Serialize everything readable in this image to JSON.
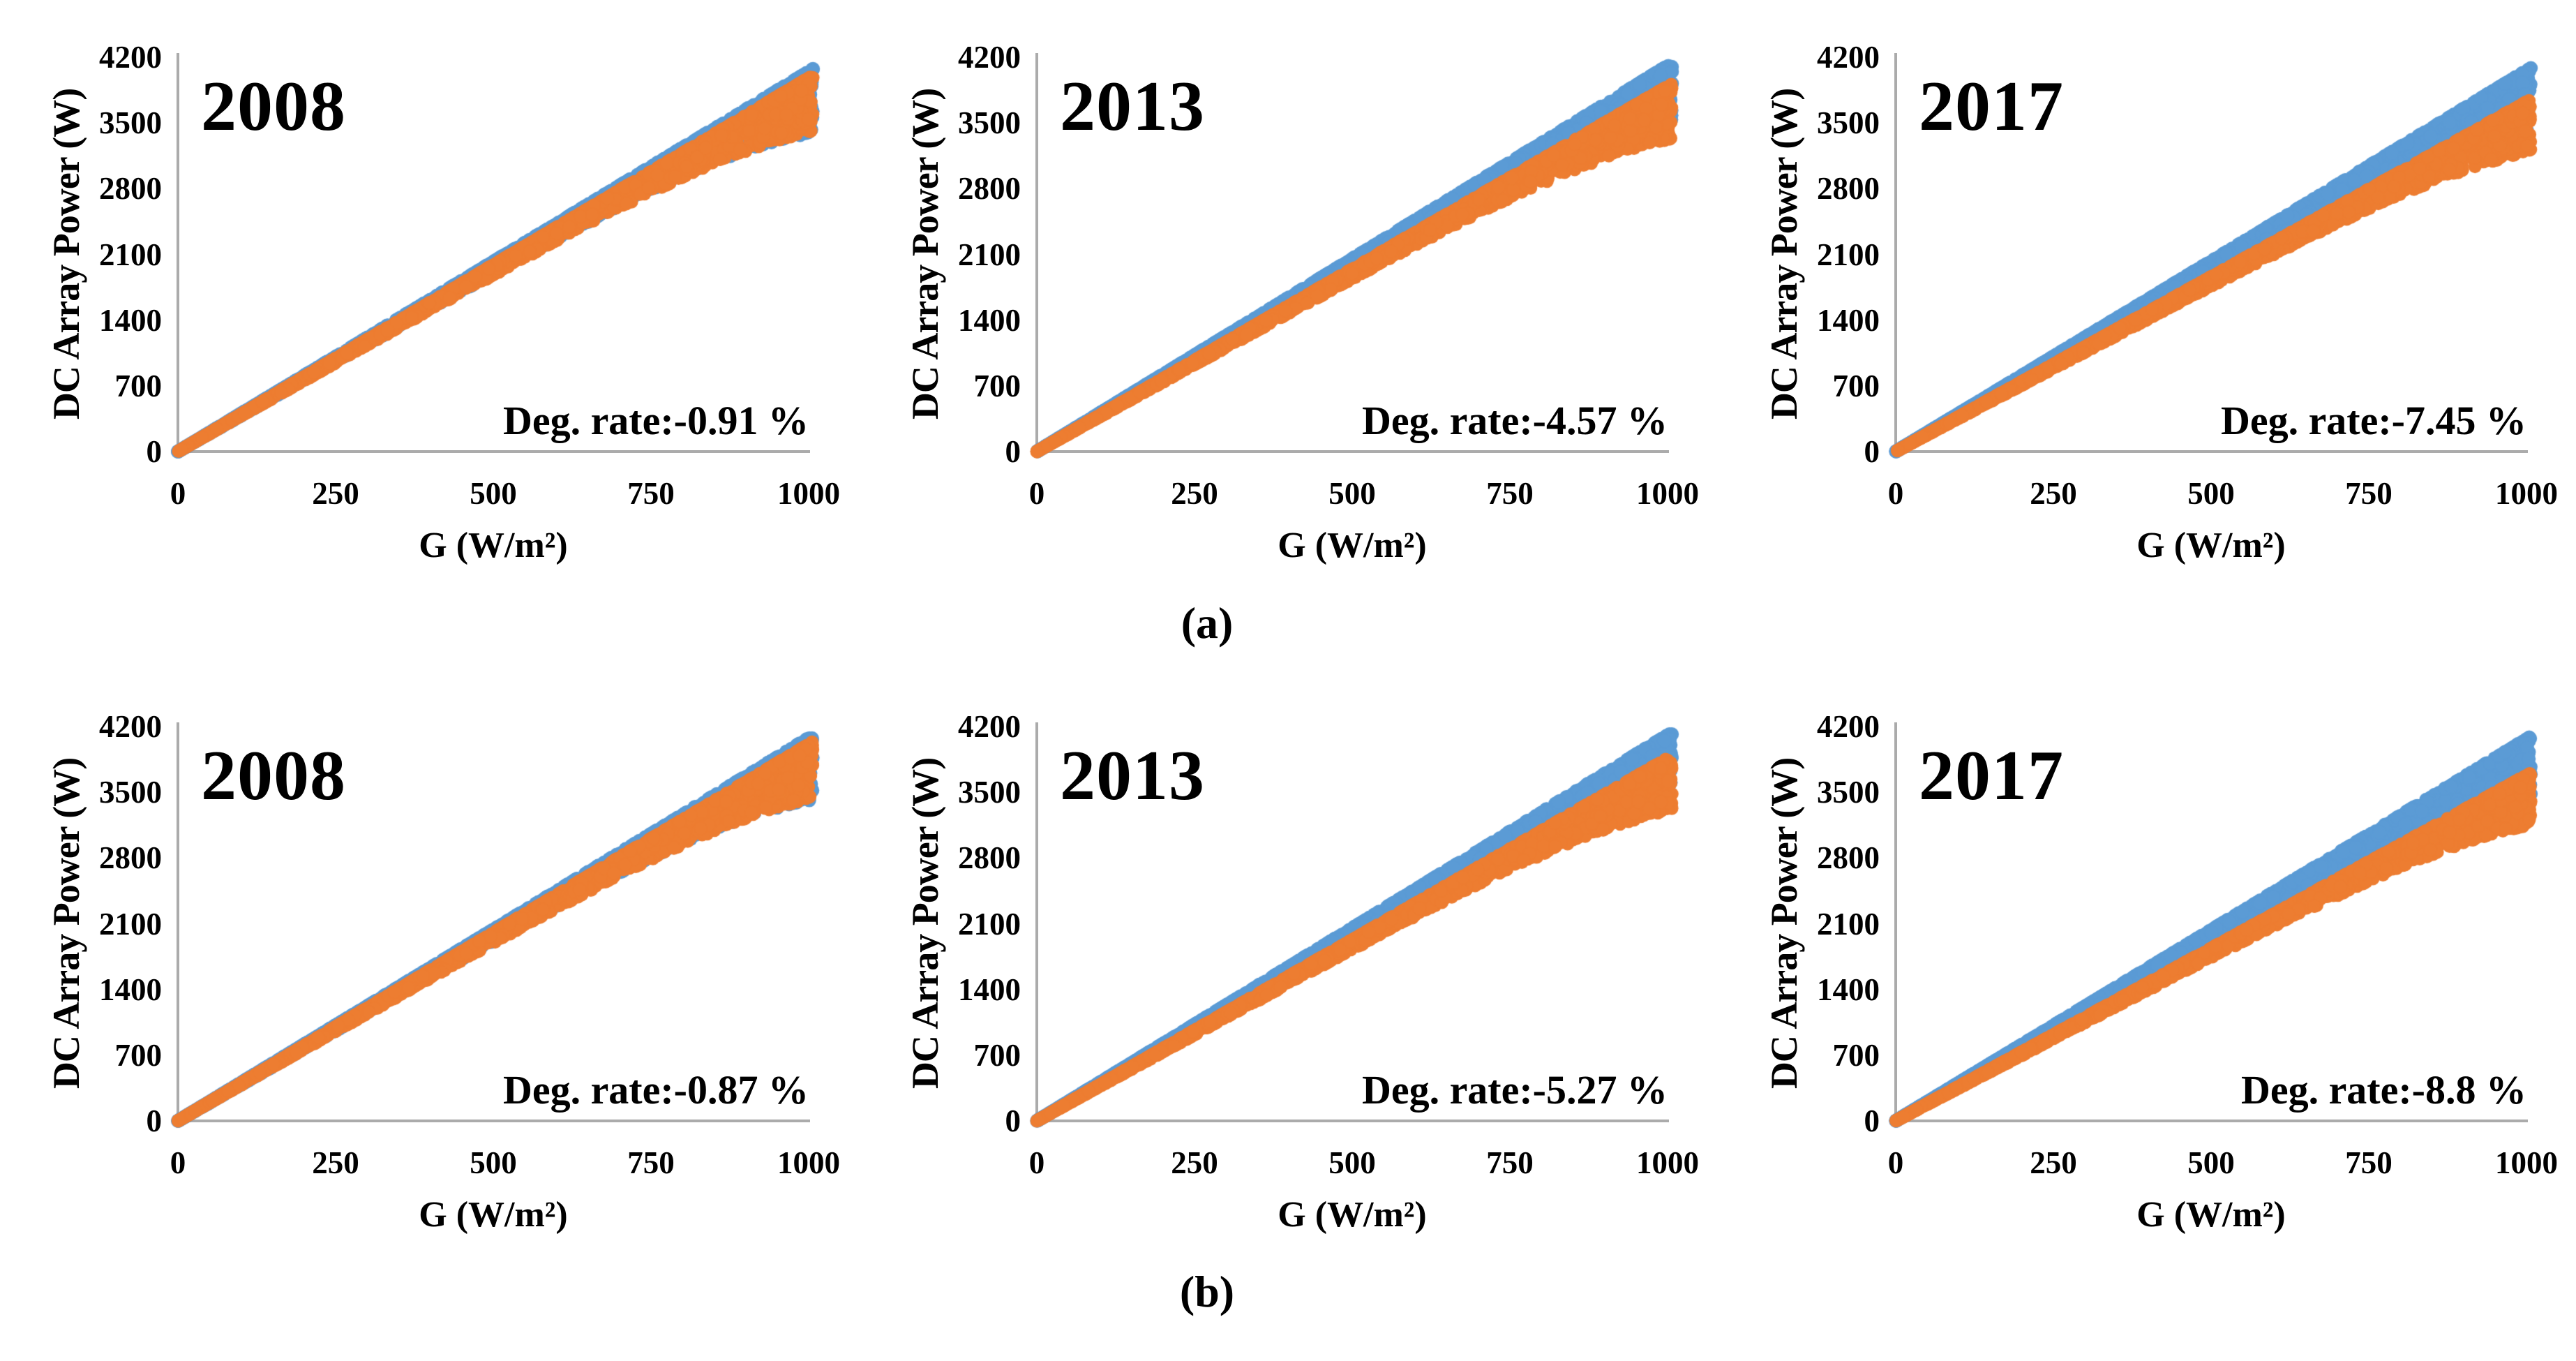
{
  "figure": {
    "captions": {
      "a": "(a)",
      "b": "(b)"
    },
    "colors": {
      "series_blue": "#5B9BD5",
      "series_orange": "#ED7D31",
      "axis_line": "#ABABAB",
      "text": "#000000",
      "background": "#FFFFFF"
    }
  },
  "chart_data": [
    {
      "panel": "a",
      "position": "left",
      "type": "scatter",
      "title": "2008",
      "annotation": "Deg. rate:-0.91 %",
      "deg_rate_percent": -0.91,
      "x_label": "G (W/m²)",
      "y_label": "DC Array Power (W)",
      "x_ticks": [
        0,
        250,
        500,
        750,
        1000
      ],
      "y_ticks": [
        0,
        700,
        1400,
        2100,
        2800,
        3500,
        4200
      ],
      "x_range": [
        0,
        1000
      ],
      "y_range": [
        0,
        4200
      ],
      "grid": false,
      "legend": "none",
      "series": [
        {
          "name": "blue",
          "color": "#5B9BD5",
          "relation": "linear-through-origin",
          "slope_w_per_wm2": 3.93,
          "power_at_1000_wm2": 3930
        },
        {
          "name": "orange",
          "color": "#ED7D31",
          "relation": "linear-through-origin",
          "slope_w_per_wm2": 3.89,
          "power_at_1000_wm2": 3894
        }
      ],
      "render": {
        "seed": 11,
        "points_per_series": 2400,
        "tip_fraction": 0.1
      }
    },
    {
      "panel": "a",
      "position": "middle",
      "type": "scatter",
      "title": "2013",
      "annotation": "Deg. rate:-4.57 %",
      "deg_rate_percent": -4.57,
      "x_label": "G (W/m²)",
      "y_label": "DC Array Power (W)",
      "x_ticks": [
        0,
        250,
        500,
        750,
        1000
      ],
      "y_ticks": [
        0,
        700,
        1400,
        2100,
        2800,
        3500,
        4200
      ],
      "x_range": [
        0,
        1000
      ],
      "y_range": [
        0,
        4200
      ],
      "grid": false,
      "legend": "none",
      "series": [
        {
          "name": "blue",
          "color": "#5B9BD5",
          "relation": "linear-through-origin",
          "slope_w_per_wm2": 3.99,
          "power_at_1000_wm2": 3990
        },
        {
          "name": "orange",
          "color": "#ED7D31",
          "relation": "linear-through-origin",
          "slope_w_per_wm2": 3.81,
          "power_at_1000_wm2": 3808
        }
      ],
      "render": {
        "seed": 12,
        "points_per_series": 2400,
        "tip_fraction": 0.1
      }
    },
    {
      "panel": "a",
      "position": "right",
      "type": "scatter",
      "title": "2017",
      "annotation": "Deg. rate:-7.45 %",
      "deg_rate_percent": -7.45,
      "x_label": "G (W/m²)",
      "y_label": "DC Array Power (W)",
      "x_ticks": [
        0,
        250,
        500,
        750,
        1000
      ],
      "y_ticks": [
        0,
        700,
        1400,
        2100,
        2800,
        3500,
        4200
      ],
      "x_range": [
        0,
        1000
      ],
      "y_range": [
        0,
        4200
      ],
      "grid": false,
      "legend": "none",
      "series": [
        {
          "name": "blue",
          "color": "#5B9BD5",
          "relation": "linear-through-origin",
          "slope_w_per_wm2": 3.94,
          "power_at_1000_wm2": 3940
        },
        {
          "name": "orange",
          "color": "#ED7D31",
          "relation": "linear-through-origin",
          "slope_w_per_wm2": 3.65,
          "power_at_1000_wm2": 3646
        }
      ],
      "render": {
        "seed": 13,
        "points_per_series": 2400,
        "tip_fraction": 0.1
      }
    },
    {
      "panel": "b",
      "position": "left",
      "type": "scatter",
      "title": "2008",
      "annotation": "Deg. rate:-0.87 %",
      "deg_rate_percent": -0.87,
      "x_label": "G (W/m²)",
      "y_label": "DC Array Power (W)",
      "x_ticks": [
        0,
        250,
        500,
        750,
        1000
      ],
      "y_ticks": [
        0,
        700,
        1400,
        2100,
        2800,
        3500,
        4200
      ],
      "x_range": [
        0,
        1000
      ],
      "y_range": [
        0,
        4200
      ],
      "grid": false,
      "legend": "none",
      "series": [
        {
          "name": "blue",
          "color": "#5B9BD5",
          "relation": "linear-through-origin",
          "slope_w_per_wm2": 3.96,
          "power_at_1000_wm2": 3960
        },
        {
          "name": "orange",
          "color": "#ED7D31",
          "relation": "linear-through-origin",
          "slope_w_per_wm2": 3.93,
          "power_at_1000_wm2": 3926
        }
      ],
      "render": {
        "seed": 21,
        "points_per_series": 2400,
        "tip_fraction": 0.1
      }
    },
    {
      "panel": "b",
      "position": "middle",
      "type": "scatter",
      "title": "2013",
      "annotation": "Deg. rate:-5.27 %",
      "deg_rate_percent": -5.27,
      "x_label": "G (W/m²)",
      "y_label": "DC Array Power (W)",
      "x_ticks": [
        0,
        250,
        500,
        750,
        1000
      ],
      "y_ticks": [
        0,
        700,
        1400,
        2100,
        2800,
        3500,
        4200
      ],
      "x_range": [
        0,
        1000
      ],
      "y_range": [
        0,
        4200
      ],
      "grid": false,
      "legend": "none",
      "series": [
        {
          "name": "blue",
          "color": "#5B9BD5",
          "relation": "linear-through-origin",
          "slope_w_per_wm2": 3.99,
          "power_at_1000_wm2": 3990
        },
        {
          "name": "orange",
          "color": "#ED7D31",
          "relation": "linear-through-origin",
          "slope_w_per_wm2": 3.78,
          "power_at_1000_wm2": 3780
        }
      ],
      "render": {
        "seed": 22,
        "points_per_series": 2400,
        "tip_fraction": 0.1
      }
    },
    {
      "panel": "b",
      "position": "right",
      "type": "scatter",
      "title": "2017",
      "annotation": "Deg. rate:-8.8 %",
      "deg_rate_percent": -8.8,
      "x_label": "G (W/m²)",
      "y_label": "DC Array Power (W)",
      "x_ticks": [
        0,
        250,
        500,
        750,
        1000
      ],
      "y_ticks": [
        0,
        700,
        1400,
        2100,
        2800,
        3500,
        4200
      ],
      "x_range": [
        0,
        1000
      ],
      "y_range": [
        0,
        4200
      ],
      "grid": false,
      "legend": "none",
      "series": [
        {
          "name": "blue",
          "color": "#5B9BD5",
          "relation": "linear-through-origin",
          "slope_w_per_wm2": 3.95,
          "power_at_1000_wm2": 3950
        },
        {
          "name": "orange",
          "color": "#ED7D31",
          "relation": "linear-through-origin",
          "slope_w_per_wm2": 3.6,
          "power_at_1000_wm2": 3602
        }
      ],
      "render": {
        "seed": 23,
        "points_per_series": 2400,
        "tip_fraction": 0.1
      }
    }
  ]
}
